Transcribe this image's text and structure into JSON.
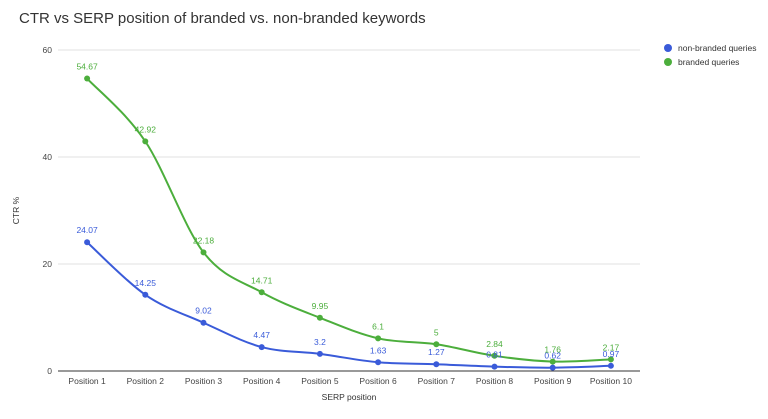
{
  "chart_data": {
    "type": "line",
    "title": "CTR vs SERP position of branded vs. non-branded keywords",
    "xlabel": "SERP position",
    "ylabel": "CTR %",
    "categories": [
      "Position 1",
      "Position 2",
      "Position 3",
      "Position 4",
      "Position 5",
      "Position 6",
      "Position 7",
      "Position 8",
      "Position 9",
      "Position 10"
    ],
    "ylim": [
      0,
      60
    ],
    "yticks": [
      0,
      20,
      40,
      60
    ],
    "grid": true,
    "legend_position": "top-right",
    "series": [
      {
        "name": "non-branded queries",
        "color": "#3a5bd9",
        "values": [
          24.07,
          14.25,
          9.02,
          4.47,
          3.2,
          1.63,
          1.27,
          0.81,
          0.62,
          0.97
        ],
        "labels": [
          "24.07",
          "14.25",
          "9.02",
          "4.47",
          "3.2",
          "1.63",
          "1.27",
          "0.81",
          "0.62",
          "0.97"
        ]
      },
      {
        "name": "branded queries",
        "color": "#4cae3c",
        "values": [
          54.67,
          42.92,
          22.18,
          14.71,
          9.95,
          6.1,
          5,
          2.84,
          1.76,
          2.17
        ],
        "labels": [
          "54.67",
          "42.92",
          "22.18",
          "14.71",
          "9.95",
          "6.1",
          "5",
          "2.84",
          "1.76",
          "2.17"
        ]
      }
    ]
  }
}
